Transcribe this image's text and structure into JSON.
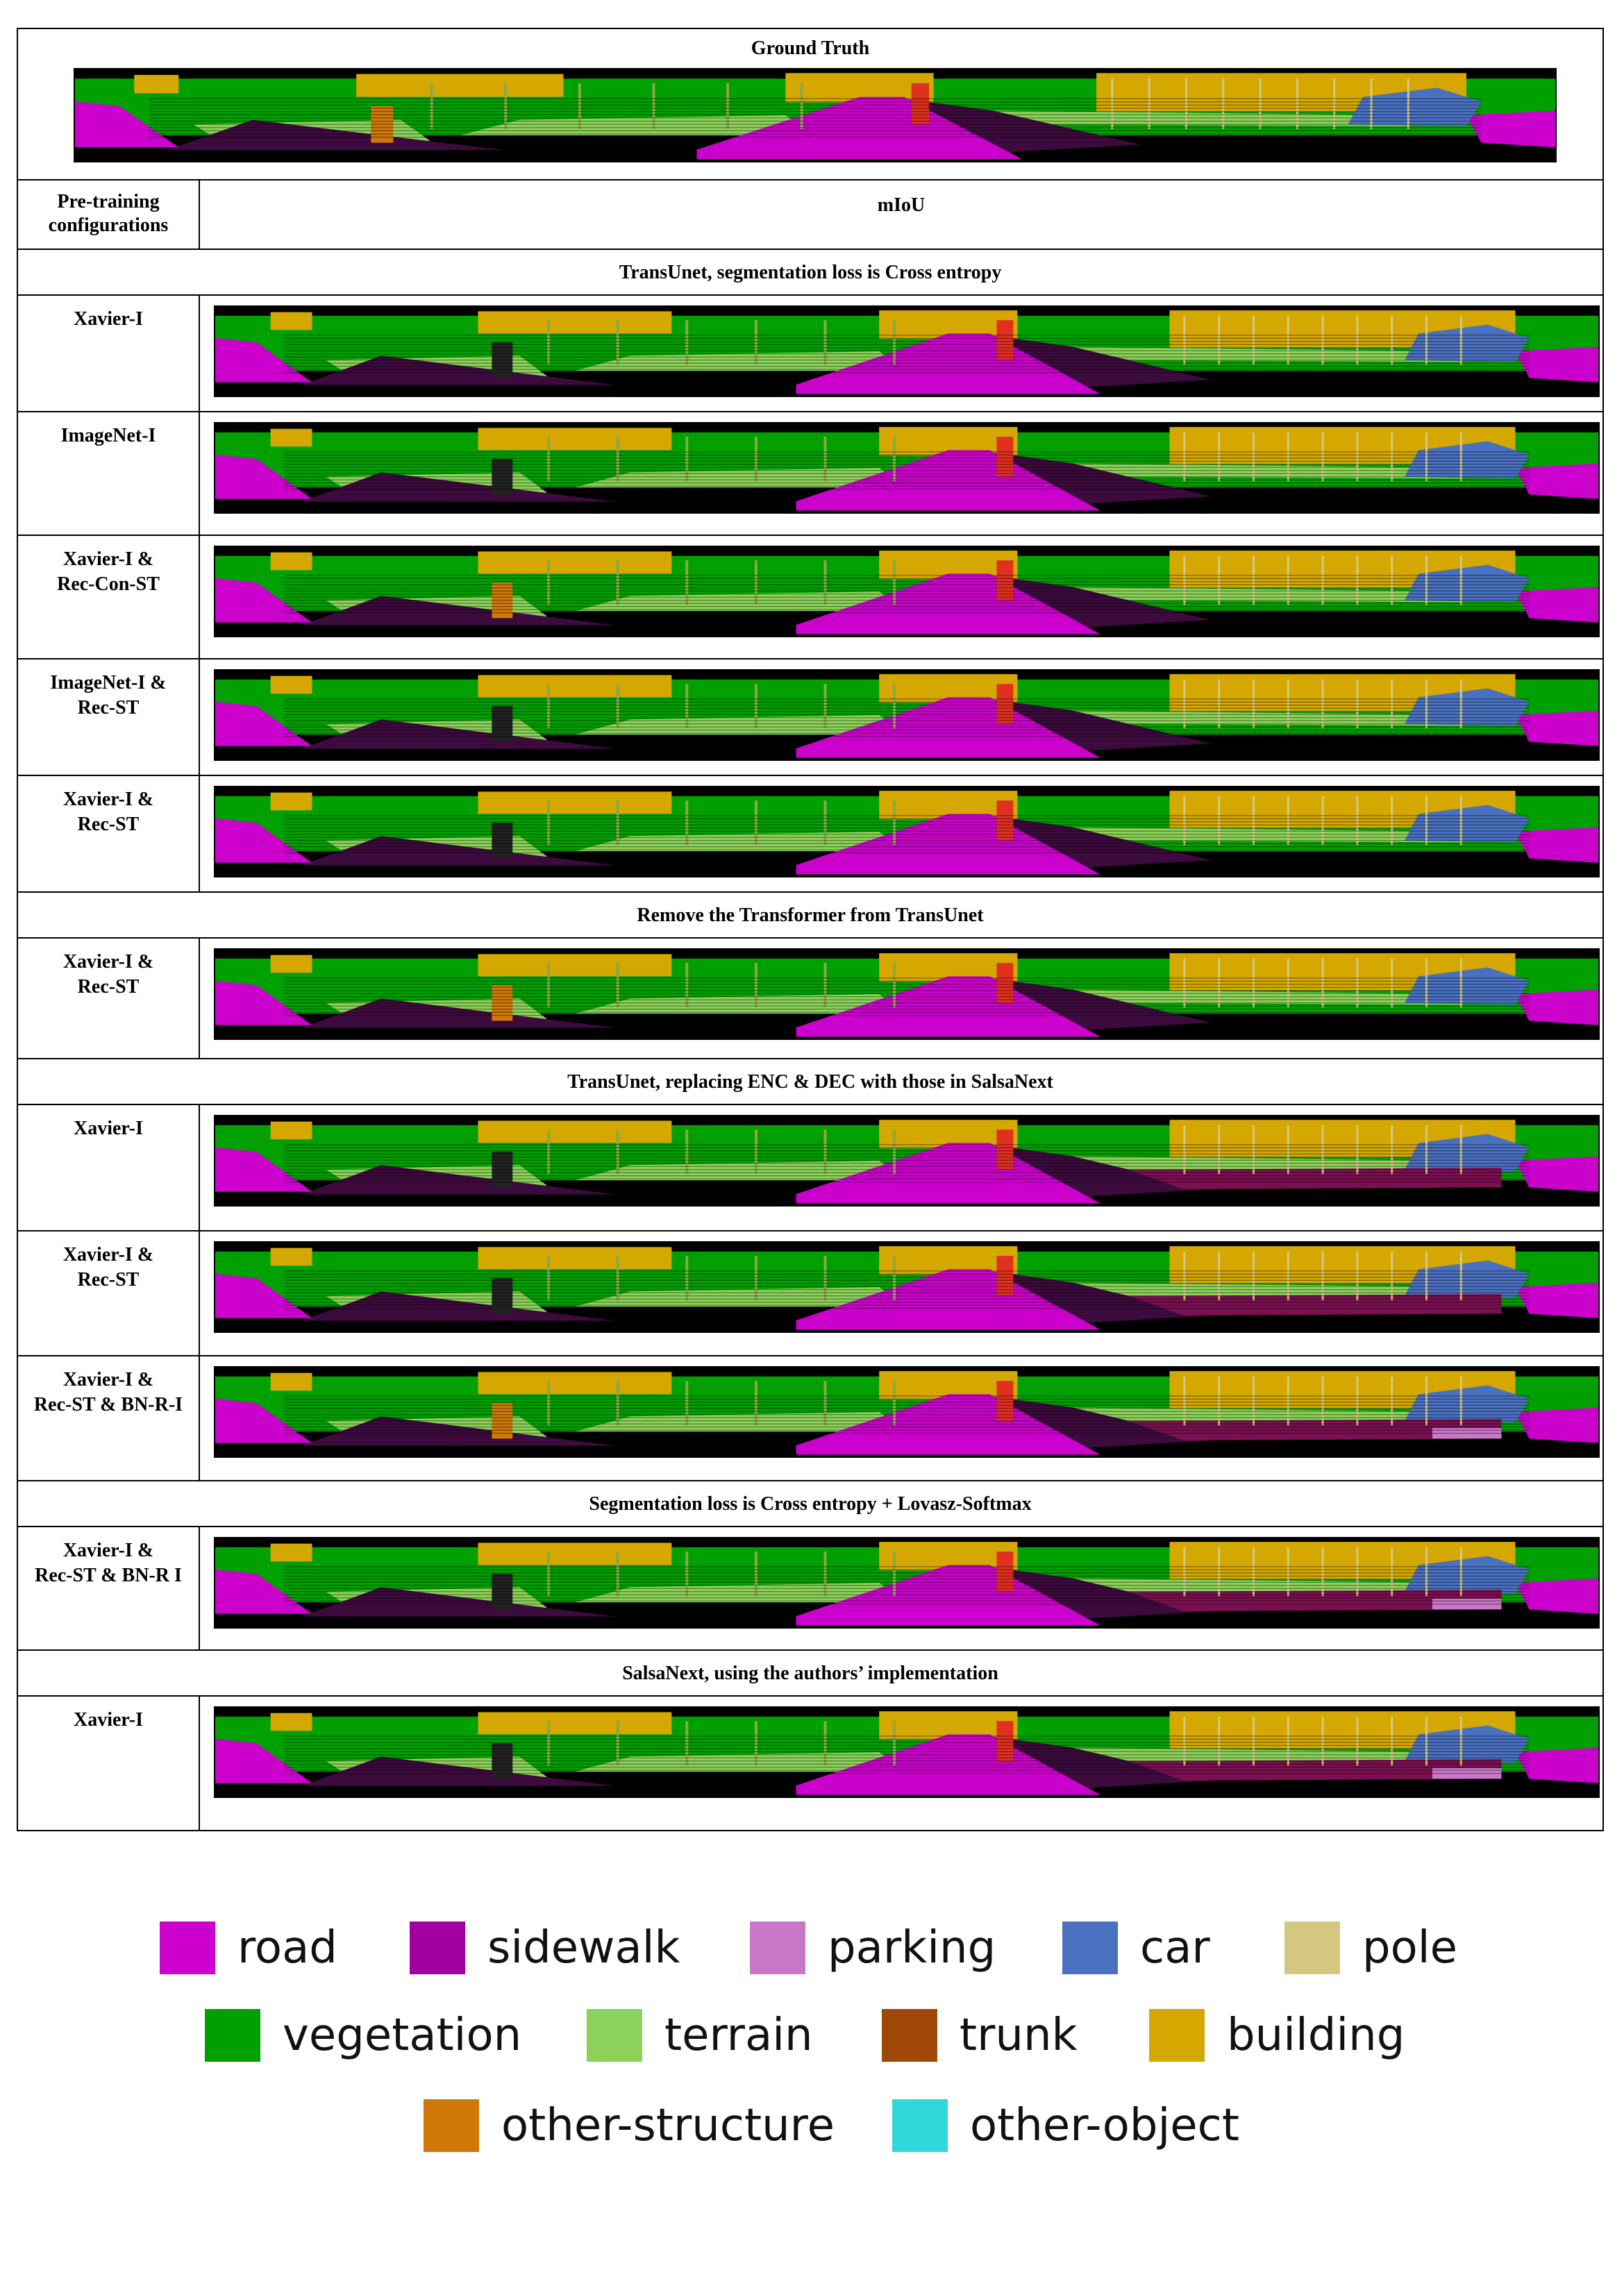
{
  "ground_truth_title": "Ground Truth",
  "header": {
    "col1": [
      "Pre-training",
      "configurations"
    ],
    "col2": "mIoU"
  },
  "sections": [
    "TransUnet, segmentation loss is Cross entropy",
    "Remove the Transformer from TransUnet",
    "TransUnet, replacing ENC & DEC with those in SalsaNext",
    "Segmentation loss is Cross entropy + Lovasz-Softmax",
    "SalsaNext, using the authors’ implementation"
  ],
  "rows": [
    [
      "Xavier-I"
    ],
    [
      "ImageNet-I"
    ],
    [
      "Xavier-I &",
      "Rec-Con-ST"
    ],
    [
      "ImageNet-I &",
      "Rec-ST"
    ],
    [
      "Xavier-I &",
      "Rec-ST"
    ],
    [
      "Xavier-I &",
      "Rec-ST"
    ],
    [
      "Xavier-I"
    ],
    [
      "Xavier-I &",
      "Rec-ST"
    ],
    [
      "Xavier-I &",
      "Rec-ST & BN-R-I"
    ],
    [
      "Xavier-I &",
      "Rec-ST & BN-R I"
    ],
    [
      "Xavier-I"
    ]
  ],
  "legend": [
    {
      "label": "road",
      "color": "#cc00cc"
    },
    {
      "label": "sidewalk",
      "color": "#a000a0"
    },
    {
      "label": "parking",
      "color": "#c878c8"
    },
    {
      "label": "car",
      "color": "#4a70c0"
    },
    {
      "label": "pole",
      "color": "#d4c880"
    },
    {
      "label": "vegetation",
      "color": "#00a000"
    },
    {
      "label": "terrain",
      "color": "#8cd25a"
    },
    {
      "label": "trunk",
      "color": "#a04808"
    },
    {
      "label": "building",
      "color": "#d4a800"
    },
    {
      "label": "other-structure",
      "color": "#d07808"
    },
    {
      "label": "other-object",
      "color": "#30d8d8"
    }
  ]
}
